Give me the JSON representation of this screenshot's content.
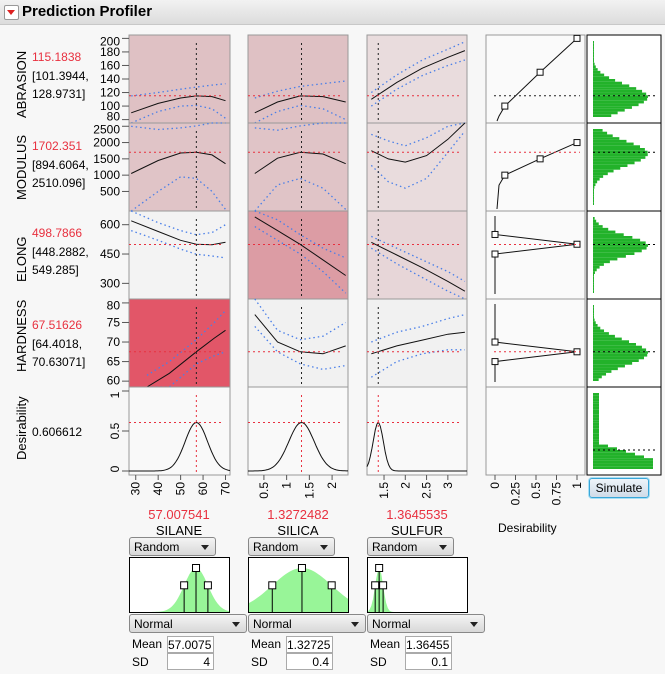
{
  "header": {
    "title": "Prediction Profiler"
  },
  "responses": [
    {
      "name": "ABRASION",
      "value": "115.1838",
      "ci_low": "[101.3944,",
      "ci_high": "128.9731]",
      "ticks": [
        80,
        100,
        120,
        140,
        160,
        180,
        200
      ],
      "range": [
        75,
        205
      ],
      "current": 115.1838,
      "shading": [
        "#dfc1c4",
        "#dfc1c4",
        "#e9dcdd"
      ]
    },
    {
      "name": "MODULUS",
      "value": "1702.351",
      "ci_low": "[894.6064,",
      "ci_high": "2510.096]",
      "ticks": [
        500,
        1000,
        1500,
        2000,
        2500
      ],
      "range": [
        -100,
        2600
      ],
      "current": 1702.351,
      "shading": [
        "#e0c4c7",
        "#e0c4c7",
        "#e9dcdd"
      ]
    },
    {
      "name": "ELONG",
      "value": "498.7866",
      "ci_low": "[448.2882,",
      "ci_high": "549.285]",
      "ticks": [
        300,
        450,
        600
      ],
      "range": [
        220,
        670
      ],
      "current": 498.7866,
      "shading": [
        "#f3f3f3",
        "#dc9ca4",
        "#e7d6d8"
      ]
    },
    {
      "name": "HARDNESS",
      "value": "67.51626",
      "ci_low": "[64.4018,",
      "ci_high": "70.63071]",
      "ticks": [
        60,
        65,
        70,
        75,
        80
      ],
      "range": [
        58.5,
        81
      ],
      "current": 67.51626,
      "shading": [
        "#e25668",
        "#f1f1f1",
        "#f1f1f1"
      ]
    },
    {
      "name": "Desirability",
      "value": "0.606612",
      "ticks": [
        0,
        0.5,
        1
      ],
      "tick_labels": [
        "0",
        "0.5",
        "1"
      ],
      "range": [
        -0.05,
        1.05
      ],
      "current": 0.606612,
      "shading": [
        "#f9f9f9",
        "#f9f9f9",
        "#f9f9f9"
      ]
    }
  ],
  "factors": [
    {
      "name": "SILANE",
      "value": "57.007541",
      "current": 57.007541,
      "ticks": [
        "30",
        "40",
        "50",
        "60",
        "70"
      ],
      "tick_values": [
        30,
        40,
        50,
        60,
        70
      ],
      "range": [
        27,
        72
      ]
    },
    {
      "name": "SILICA",
      "value": "1.3272482",
      "current": 1.3272482,
      "ticks": [
        "0.5",
        "1",
        "1.5",
        "2"
      ],
      "tick_values": [
        0.5,
        1,
        1.5,
        2
      ],
      "range": [
        0.15,
        2.35
      ]
    },
    {
      "name": "SULFUR",
      "value": "1.3645535",
      "current": 1.3645535,
      "ticks": [
        "1.5",
        "2",
        "2.5",
        "3"
      ],
      "tick_values": [
        1.5,
        2,
        2.5,
        3
      ],
      "range": [
        1.1,
        3.45
      ]
    }
  ],
  "profiles": [
    [
      {
        "x": [
          28,
          40,
          50,
          57,
          64,
          70
        ],
        "mean": [
          90,
          104,
          112,
          115,
          114,
          108
        ],
        "lower": [
          70,
          92,
          100,
          101,
          96,
          82
        ],
        "upper": [
          115,
          120,
          125,
          128,
          131,
          133
        ]
      },
      {
        "x": [
          0.3,
          0.8,
          1.3,
          1.8,
          2.3
        ],
        "mean": [
          90,
          106,
          115,
          114,
          106
        ],
        "lower": [
          68,
          92,
          101,
          96,
          80
        ],
        "upper": [
          112,
          122,
          129,
          133,
          137
        ]
      },
      {
        "x": [
          1.2,
          1.8,
          2.4,
          3.0,
          3.4
        ],
        "mean": [
          110,
          135,
          156,
          172,
          182
        ],
        "lower": [
          100,
          125,
          145,
          160,
          168
        ],
        "upper": [
          120,
          146,
          168,
          184,
          195
        ]
      }
    ],
    [
      {
        "x": [
          28,
          40,
          50,
          57,
          64,
          70
        ],
        "mean": [
          1050,
          1450,
          1680,
          1702,
          1620,
          1350
        ],
        "lower": [
          -100,
          500,
          950,
          900,
          500,
          -50
        ],
        "upper": [
          2500,
          2400,
          2450,
          2510,
          2600,
          2700
        ]
      },
      {
        "x": [
          0.3,
          0.8,
          1.3,
          1.8,
          2.3
        ],
        "mean": [
          1050,
          1520,
          1702,
          1650,
          1350
        ],
        "lower": [
          -100,
          700,
          900,
          600,
          -50
        ],
        "upper": [
          2450,
          2380,
          2510,
          2650,
          2750
        ]
      },
      {
        "x": [
          1.2,
          1.6,
          2.0,
          2.5,
          3.0,
          3.4
        ],
        "mean": [
          1750,
          1500,
          1400,
          1600,
          2100,
          2600
        ],
        "lower": [
          1300,
          800,
          600,
          900,
          1700,
          2350
        ],
        "upper": [
          2250,
          2050,
          1900,
          2150,
          2500,
          2750
        ]
      }
    ],
    [
      {
        "x": [
          28,
          40,
          50,
          57,
          64,
          70
        ],
        "mean": [
          620,
          565,
          520,
          500,
          497,
          510
        ],
        "lower": [
          570,
          520,
          475,
          449,
          440,
          430
        ],
        "upper": [
          670,
          610,
          570,
          549,
          560,
          600
        ]
      },
      {
        "x": [
          0.3,
          0.8,
          1.3,
          1.8,
          2.3
        ],
        "mean": [
          640,
          570,
          499,
          420,
          340
        ],
        "lower": [
          590,
          520,
          450,
          360,
          250
        ],
        "upper": [
          700,
          625,
          549,
          480,
          430
        ]
      },
      {
        "x": [
          1.2,
          1.8,
          2.4,
          3.0,
          3.4
        ],
        "mean": [
          510,
          445,
          380,
          310,
          260
        ],
        "lower": [
          480,
          400,
          330,
          260,
          210
        ],
        "upper": [
          540,
          480,
          420,
          360,
          310
        ]
      }
    ],
    [
      {
        "x": [
          35,
          45,
          57,
          65,
          70
        ],
        "mean": [
          58.5,
          62,
          67.5,
          71,
          73
        ],
        "lower": [
          55,
          58.5,
          64.4,
          66.5,
          67.5
        ],
        "upper": [
          61.5,
          65,
          70.6,
          75,
          78
        ]
      },
      {
        "x": [
          0.3,
          0.8,
          1.3,
          1.8,
          2.3
        ],
        "mean": [
          77,
          70,
          67.5,
          67,
          69
        ],
        "lower": [
          74,
          67.5,
          64.4,
          63,
          64
        ],
        "upper": [
          81,
          73,
          70.6,
          71.5,
          75
        ]
      },
      {
        "x": [
          1.2,
          1.8,
          2.4,
          3.0,
          3.4
        ],
        "mean": [
          67,
          69,
          70.5,
          72,
          72.5
        ],
        "lower": [
          61,
          65,
          67,
          68,
          68
        ],
        "upper": [
          70,
          72.5,
          74,
          76,
          77
        ]
      }
    ]
  ],
  "desirability_profile": {
    "peak": 0.606612,
    "widths": [
      5,
      0.28,
      0.12
    ]
  },
  "desirability_functions": {
    "xlabel": "Desirability",
    "ticks": [
      "0",
      "0.25",
      "0.5",
      "0.75",
      "1"
    ],
    "tick_values": [
      0,
      0.25,
      0.5,
      0.75,
      1
    ],
    "points": [
      [
        [
          0.12,
          100
        ],
        [
          0.55,
          150
        ],
        [
          1,
          200
        ]
      ],
      [
        [
          0.12,
          1000
        ],
        [
          0.55,
          1500
        ],
        [
          1,
          2000
        ]
      ],
      [
        [
          0,
          550
        ],
        [
          1,
          500
        ],
        [
          0,
          450
        ]
      ],
      [
        [
          0,
          70
        ],
        [
          1,
          67.5
        ],
        [
          0,
          65
        ]
      ]
    ]
  },
  "simulator": {
    "button": "Simulate",
    "bar_color": "#22b22a"
  },
  "factor_settings": [
    {
      "mode": "Random",
      "distribution": "Normal",
      "mean_label": "Mean",
      "mean": "57.0075",
      "sd_label": "SD",
      "sd": "4",
      "spread": 0.12
    },
    {
      "mode": "Random",
      "distribution": "Normal",
      "mean_label": "Mean",
      "mean": "1.32725",
      "sd_label": "SD",
      "sd": "0.4",
      "spread": 0.3
    },
    {
      "mode": "Random",
      "distribution": "Normal",
      "mean_label": "Mean",
      "mean": "1.36455",
      "sd_label": "SD",
      "sd": "0.1",
      "spread": 0.04
    }
  ],
  "colors": {
    "current_value": "#e8303f",
    "ci_band": "#4a7fe8",
    "dist_fill": "#98f598"
  }
}
